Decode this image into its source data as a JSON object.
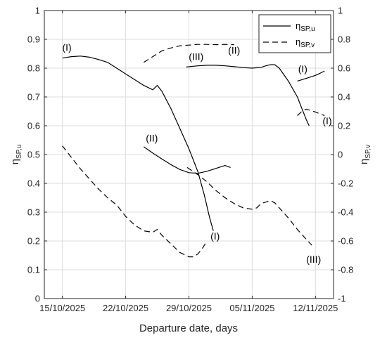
{
  "chart_data": {
    "type": "line",
    "xlabel": "Departure date, days",
    "ylabel_left": {
      "main": "η",
      "sub": "SP,u"
    },
    "ylabel_right": {
      "main": "η",
      "sub": "SP,v"
    },
    "x_ticks": [
      {
        "day": 0,
        "label": "15/10/2025"
      },
      {
        "day": 7,
        "label": "22/10/2025"
      },
      {
        "day": 14,
        "label": "29/10/2025"
      },
      {
        "day": 21,
        "label": "05/11/2025"
      },
      {
        "day": 28,
        "label": "12/11/2025"
      }
    ],
    "xlim_days": [
      -2,
      30
    ],
    "x_reference_date": "15/10/2025",
    "ylim_left": [
      0,
      1
    ],
    "ylim_right": [
      -1,
      1
    ],
    "y_ticks_left": [
      "0",
      "0.1",
      "0.2",
      "0.3",
      "0.4",
      "0.5",
      "0.6",
      "0.7",
      "0.8",
      "0.9",
      "1"
    ],
    "y_ticks_right": [
      "-1",
      "-0.8",
      "-0.6",
      "-0.4",
      "-0.2",
      "0",
      "0.2",
      "0.4",
      "0.6",
      "0.8",
      "1"
    ],
    "grid": true,
    "legend_position": "top-right",
    "legend": [
      {
        "main": "η",
        "sub": "SP,u",
        "style": "solid"
      },
      {
        "main": "η",
        "sub": "SP,v",
        "style": "dashed"
      }
    ],
    "series": [
      {
        "axis": "left",
        "style": "solid",
        "points": [
          [
            0,
            0.835
          ],
          [
            1,
            0.84
          ],
          [
            2,
            0.842
          ],
          [
            3,
            0.838
          ],
          [
            4,
            0.83
          ],
          [
            5,
            0.82
          ],
          [
            6,
            0.8
          ],
          [
            7,
            0.78
          ],
          [
            8,
            0.76
          ],
          [
            9,
            0.74
          ],
          [
            10,
            0.725
          ],
          [
            10.5,
            0.74
          ],
          [
            11,
            0.72
          ],
          [
            12,
            0.66
          ],
          [
            13,
            0.59
          ],
          [
            14,
            0.52
          ],
          [
            15,
            0.44
          ],
          [
            15.7,
            0.36
          ],
          [
            16.3,
            0.28
          ],
          [
            16.7,
            0.235
          ]
        ]
      },
      {
        "axis": "left",
        "style": "solid",
        "points": [
          [
            9,
            0.527
          ],
          [
            10,
            0.505
          ],
          [
            11,
            0.485
          ],
          [
            12,
            0.465
          ],
          [
            13,
            0.448
          ],
          [
            14,
            0.437
          ],
          [
            15,
            0.435
          ],
          [
            16,
            0.442
          ],
          [
            17,
            0.452
          ],
          [
            18,
            0.462
          ],
          [
            18.6,
            0.455
          ]
        ]
      },
      {
        "axis": "left",
        "style": "solid",
        "points": [
          [
            13.7,
            0.804
          ],
          [
            15,
            0.808
          ],
          [
            16,
            0.81
          ],
          [
            17,
            0.81
          ],
          [
            18,
            0.808
          ],
          [
            19,
            0.805
          ],
          [
            20,
            0.802
          ],
          [
            21,
            0.8
          ],
          [
            22,
            0.803
          ],
          [
            22.5,
            0.808
          ],
          [
            23,
            0.812
          ],
          [
            23.5,
            0.812
          ],
          [
            24,
            0.8
          ],
          [
            25,
            0.755
          ],
          [
            26,
            0.7
          ],
          [
            26.5,
            0.66
          ],
          [
            27,
            0.62
          ],
          [
            27.3,
            0.6
          ]
        ]
      },
      {
        "axis": "left",
        "style": "solid",
        "points": [
          [
            26,
            0.755
          ],
          [
            27,
            0.765
          ],
          [
            28,
            0.775
          ],
          [
            28.5,
            0.782
          ],
          [
            29,
            0.79
          ]
        ]
      },
      {
        "axis": "right",
        "style": "dashed",
        "points": [
          [
            9,
            0.64
          ],
          [
            10,
            0.68
          ],
          [
            11,
            0.72
          ],
          [
            12,
            0.74
          ],
          [
            13,
            0.755
          ],
          [
            14,
            0.76
          ],
          [
            15,
            0.765
          ],
          [
            16,
            0.765
          ],
          [
            17,
            0.763
          ],
          [
            18,
            0.765
          ],
          [
            19,
            0.763
          ]
        ]
      },
      {
        "axis": "right",
        "style": "dashed",
        "points": [
          [
            0,
            0.06
          ],
          [
            1,
            -0.02
          ],
          [
            2,
            -0.1
          ],
          [
            3,
            -0.17
          ],
          [
            4,
            -0.24
          ],
          [
            5,
            -0.3
          ],
          [
            6,
            -0.35
          ],
          [
            7,
            -0.43
          ],
          [
            8,
            -0.49
          ],
          [
            9,
            -0.53
          ],
          [
            10,
            -0.54
          ],
          [
            10.5,
            -0.52
          ],
          [
            11,
            -0.56
          ],
          [
            12,
            -0.62
          ],
          [
            13,
            -0.68
          ],
          [
            14,
            -0.71
          ],
          [
            14.5,
            -0.71
          ],
          [
            15,
            -0.69
          ],
          [
            15.5,
            -0.65
          ],
          [
            16,
            -0.6
          ]
        ]
      },
      {
        "axis": "right",
        "style": "dashed",
        "points": [
          [
            13.8,
            -0.09
          ],
          [
            15,
            -0.14
          ],
          [
            16,
            -0.19
          ],
          [
            17,
            -0.25
          ],
          [
            18,
            -0.3
          ],
          [
            19,
            -0.34
          ],
          [
            20,
            -0.37
          ],
          [
            21,
            -0.38
          ],
          [
            21.5,
            -0.37
          ],
          [
            22,
            -0.34
          ],
          [
            23,
            -0.32
          ],
          [
            23.5,
            -0.335
          ],
          [
            24,
            -0.37
          ],
          [
            25,
            -0.44
          ],
          [
            26,
            -0.52
          ],
          [
            27,
            -0.59
          ],
          [
            27.6,
            -0.63
          ]
        ]
      },
      {
        "axis": "right",
        "style": "dashed",
        "points": [
          [
            26,
            0.27
          ],
          [
            26.5,
            0.3
          ],
          [
            27,
            0.315
          ],
          [
            28,
            0.295
          ],
          [
            29,
            0.27
          ]
        ]
      }
    ],
    "annotations": [
      {
        "text": "(I)",
        "x": 0.5,
        "y": 0.86,
        "axis": "left"
      },
      {
        "text": "(II)",
        "x": 9.9,
        "y": 0.545,
        "axis": "left"
      },
      {
        "text": "(III)",
        "x": 14.8,
        "y": 0.828,
        "axis": "left"
      },
      {
        "text": "(II)",
        "x": 19.0,
        "y": 0.85,
        "axis": "left"
      },
      {
        "text": "(I)",
        "x": 26.6,
        "y": 0.785,
        "axis": "left"
      },
      {
        "text": "(I)",
        "x": 16.9,
        "y": 0.205,
        "axis": "left"
      },
      {
        "text": "(I)",
        "x": 29.3,
        "y": 0.605,
        "axis": "left"
      },
      {
        "text": "(III)",
        "x": 27.8,
        "y": 0.125,
        "axis": "left"
      }
    ]
  }
}
